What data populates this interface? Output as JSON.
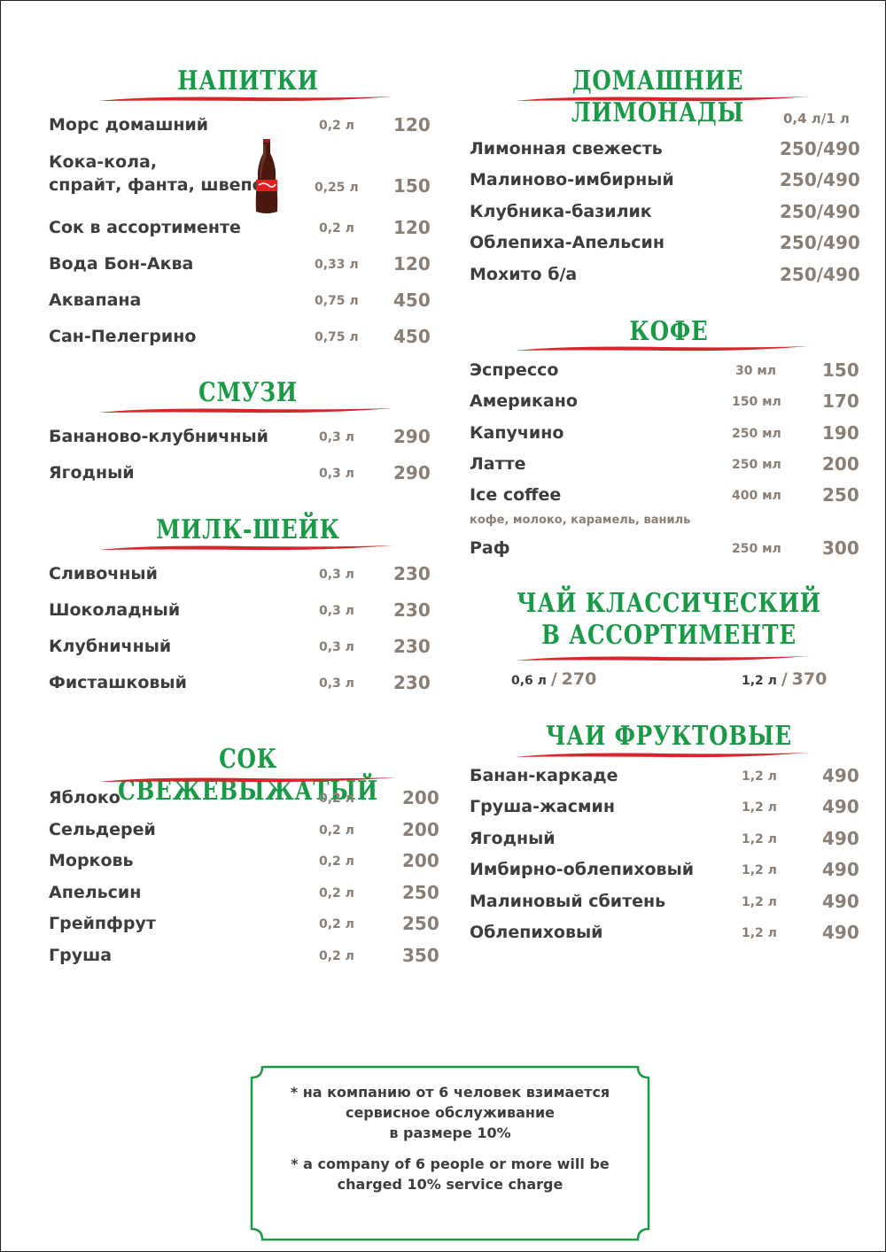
{
  "left": {
    "napitki": {
      "title": "НАПИТКИ",
      "items": [
        {
          "name": "Морс домашний",
          "vol": "0,2 л",
          "price": "120"
        },
        {
          "name": "Кока-кола,",
          "name2": "спрайт, фанта, швепс",
          "vol": "0,25 л",
          "price": "150"
        },
        {
          "name": "Сок в ассортименте",
          "vol": "0,2 л",
          "price": "120"
        },
        {
          "name": "Вода Бон-Аква",
          "vol": "0,33 л",
          "price": "120"
        },
        {
          "name": "Аквапана",
          "vol": "0,75 л",
          "price": "450"
        },
        {
          "name": "Сан-Пелегрино",
          "vol": "0,75 л",
          "price": "450"
        }
      ]
    },
    "smuzi": {
      "title": "СМУЗИ",
      "items": [
        {
          "name": "Бананово-клубничный",
          "vol": "0,3 л",
          "price": "290"
        },
        {
          "name": "Ягодный",
          "vol": "0,3 л",
          "price": "290"
        }
      ]
    },
    "milkshake": {
      "title": "МИЛК-ШЕЙК",
      "items": [
        {
          "name": "Сливочный",
          "vol": "0,3 л",
          "price": "230"
        },
        {
          "name": "Шоколадный",
          "vol": "0,3 л",
          "price": "230"
        },
        {
          "name": "Клубничный",
          "vol": "0,3 л",
          "price": "230"
        },
        {
          "name": "Фисташковый",
          "vol": "0,3 л",
          "price": "230"
        }
      ]
    },
    "fresh": {
      "title": "СОК СВЕЖЕВЫЖАТЫЙ",
      "items": [
        {
          "name": "Яблоко",
          "vol": "0,2 л",
          "price": "200"
        },
        {
          "name": "Сельдерей",
          "vol": "0,2 л",
          "price": "200"
        },
        {
          "name": "Морковь",
          "vol": "0,2 л",
          "price": "200"
        },
        {
          "name": "Апельсин",
          "vol": "0,2 л",
          "price": "250"
        },
        {
          "name": "Грейпфрут",
          "vol": "0,2 л",
          "price": "250"
        },
        {
          "name": "Груша",
          "vol": "0,2 л",
          "price": "350"
        }
      ]
    }
  },
  "right": {
    "lemonades": {
      "title": "ДОМАШНИЕ ЛИМОНАДЫ",
      "sizes": "0,4 л/1 л",
      "items": [
        {
          "name": "Лимонная свежесть",
          "price": "250/490"
        },
        {
          "name": "Малиново-имбирный",
          "price": "250/490"
        },
        {
          "name": "Клубника-базилик",
          "price": "250/490"
        },
        {
          "name": "Облепиха-Апельсин",
          "price": "250/490"
        },
        {
          "name": "Мохито б/а",
          "price": "250/490"
        }
      ]
    },
    "coffee": {
      "title": "КОФЕ",
      "items": [
        {
          "name": "Эспрессо",
          "vol": "30 мл",
          "price": "150"
        },
        {
          "name": "Американо",
          "vol": "150 мл",
          "price": "170"
        },
        {
          "name": "Капучино",
          "vol": "250 мл",
          "price": "190"
        },
        {
          "name": "Латте",
          "vol": "250 мл",
          "price": "200"
        },
        {
          "name": "Ice coffee",
          "vol": "400 мл",
          "price": "250"
        },
        {
          "name": "Раф",
          "vol": "250 мл",
          "price": "300"
        }
      ],
      "raf_note": "кофе, молоко, карамель, ваниль"
    },
    "tea_classic": {
      "title_line1": "ЧАЙ КЛАССИЧЕСКИЙ",
      "title_line2": "В АССОРТИМЕНТЕ",
      "size1": "0,6 л",
      "price1": "270",
      "size2": "1,2 л",
      "price2": "370",
      "separator": "/"
    },
    "tea_fruit": {
      "title": "ЧАИ ФРУКТОВЫЕ",
      "items": [
        {
          "name": "Банан-каркаде",
          "vol": "1,2 л",
          "price": "490"
        },
        {
          "name": "Груша-жасмин",
          "vol": "1,2 л",
          "price": "490"
        },
        {
          "name": "Ягодный",
          "vol": "1,2 л",
          "price": "490"
        },
        {
          "name": "Имбирно-облепиховый",
          "vol": "1,2 л",
          "price": "490"
        },
        {
          "name": "Малиновый сбитень",
          "vol": "1,2 л",
          "price": "490"
        },
        {
          "name": "Облепиховый",
          "vol": "1,2 л",
          "price": "490"
        }
      ]
    }
  },
  "footer": {
    "ru_line1": "* на компанию от 6 человек взимается",
    "ru_line2": "сервисное обслуживание",
    "ru_line3": "в размере 10%",
    "en_line1": "* a company of 6 people or more will be",
    "en_line2": "charged 10% service charge"
  },
  "colors": {
    "heading_green": "#1a9a46",
    "swash_red": "#d8242a",
    "price_gray": "#8a7f77",
    "text_dark": "#3d3d3d"
  },
  "icons": {
    "bottle": "coca-cola-bottle-icon"
  }
}
